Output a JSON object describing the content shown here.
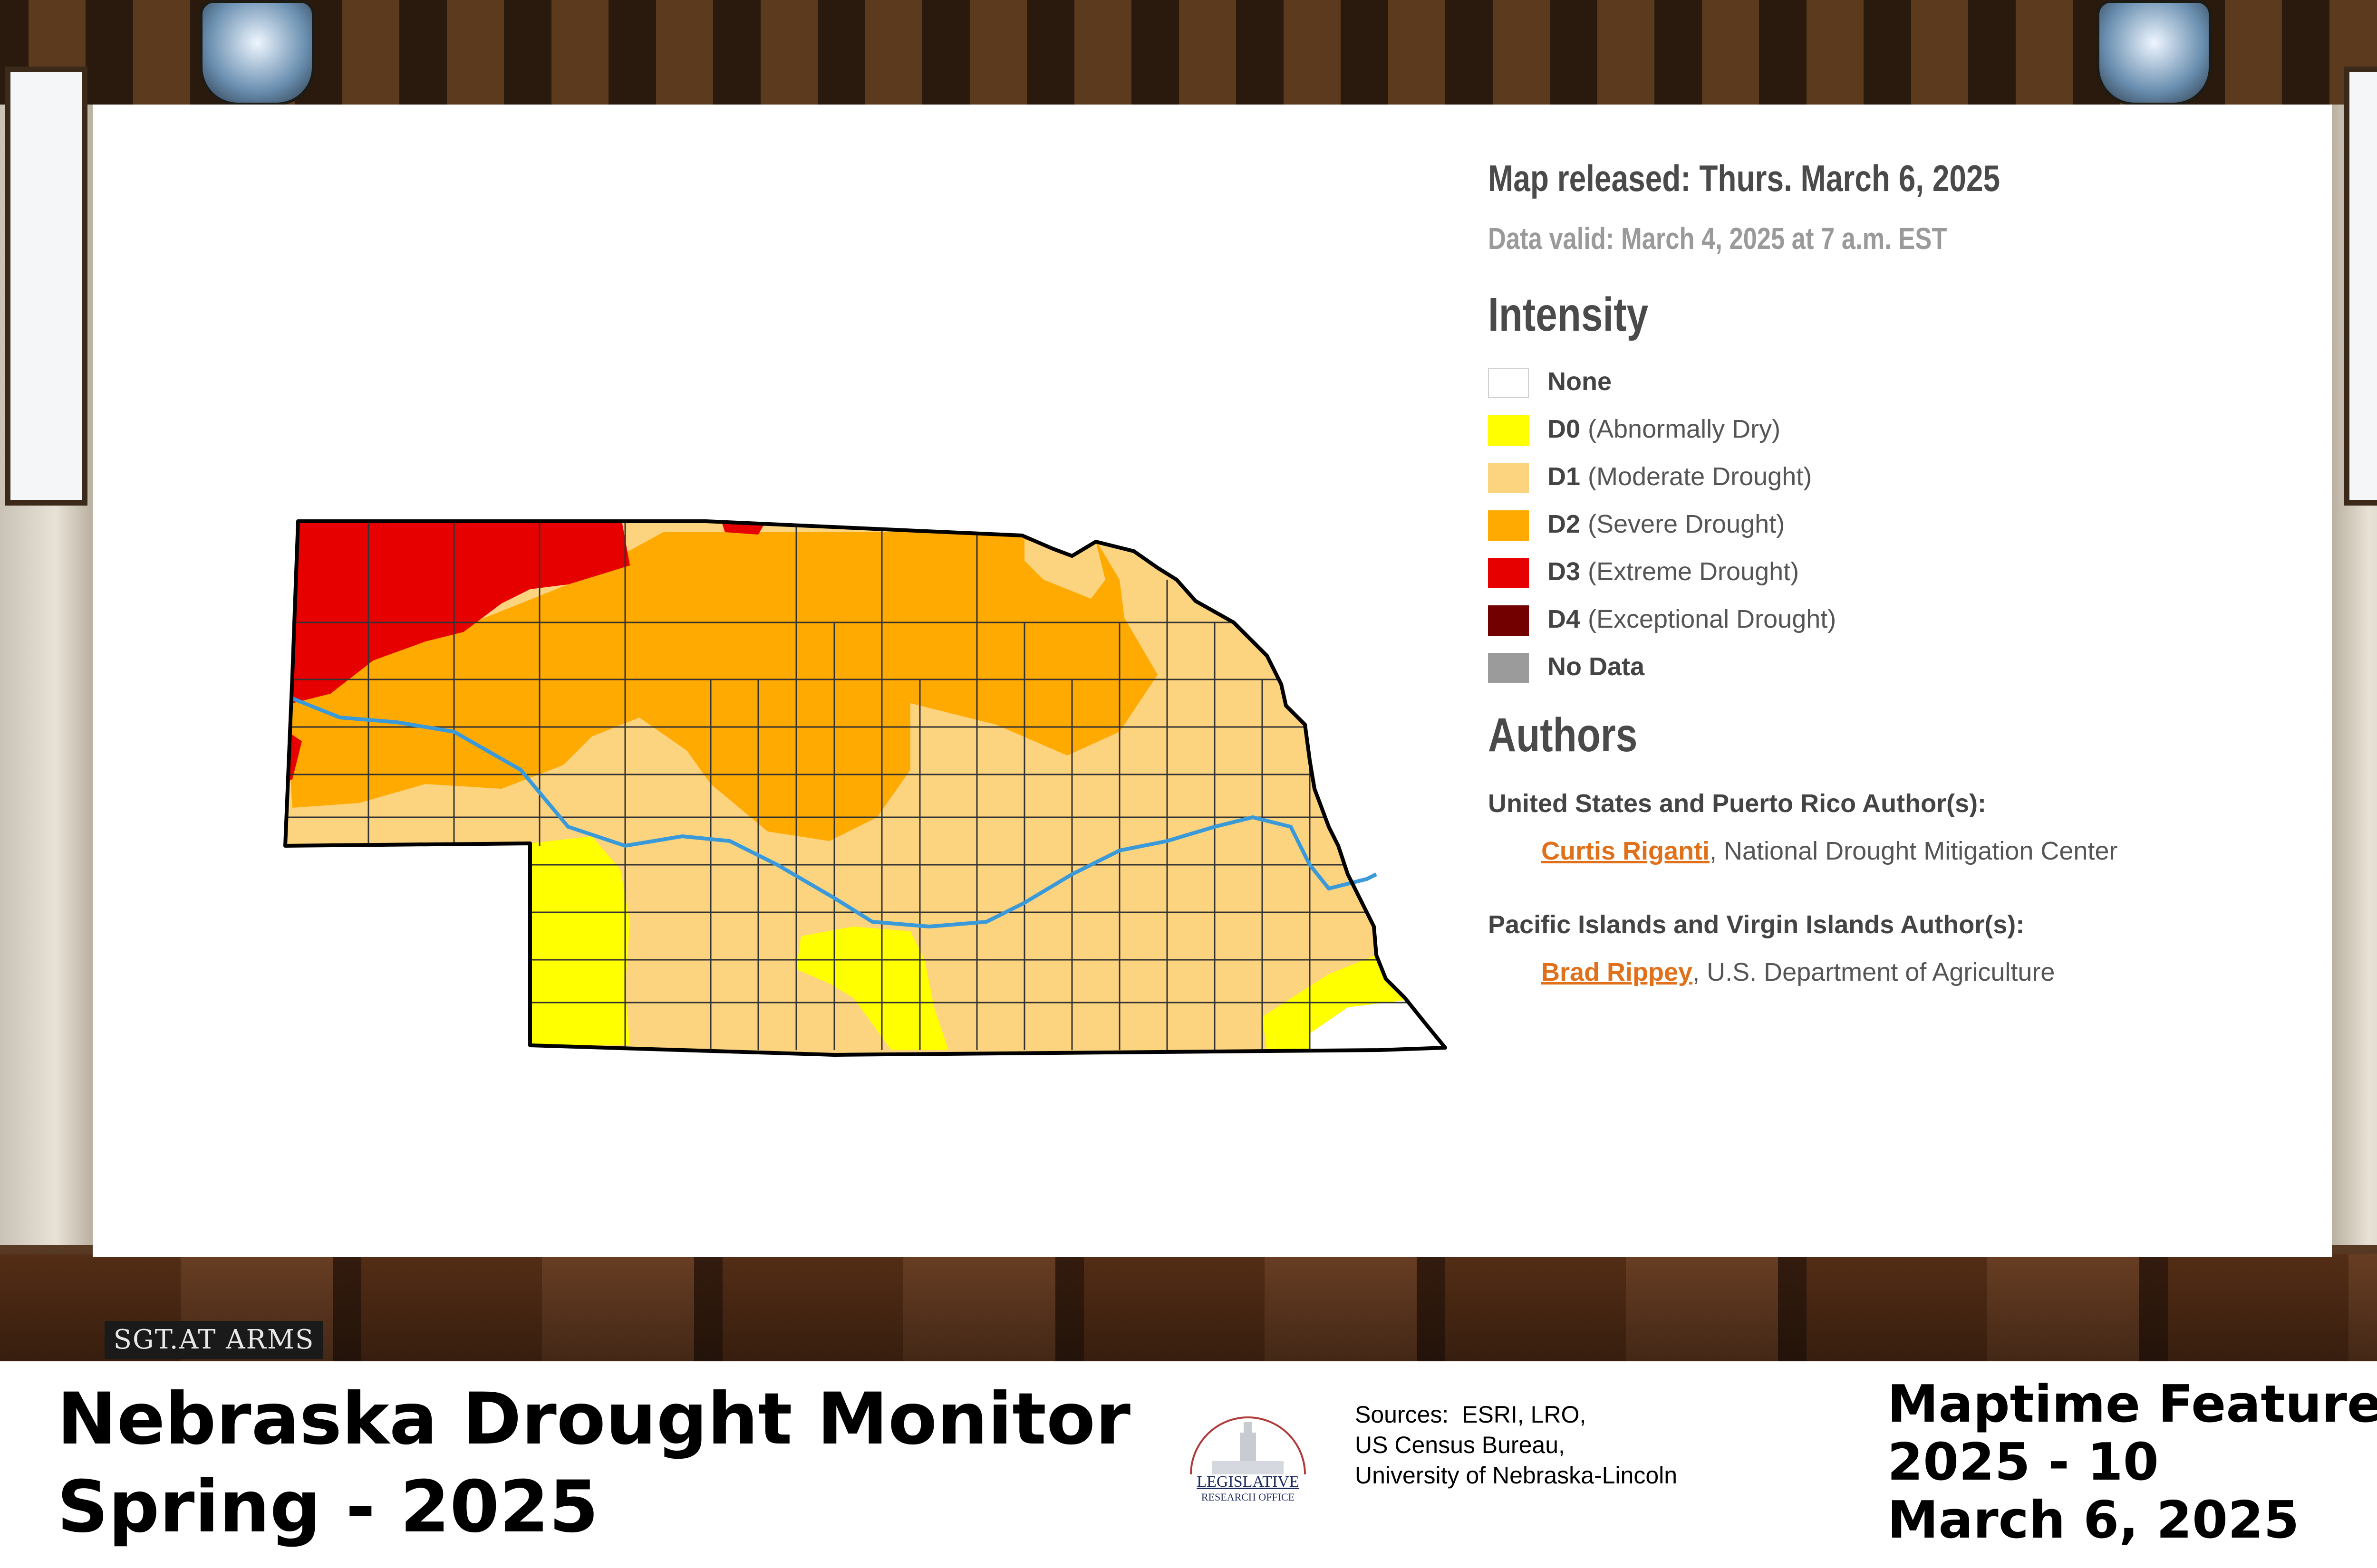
{
  "map": {
    "released": "Map released: Thurs. March 6, 2025",
    "valid": "Data valid: March 4, 2025 at 7 a.m. EST",
    "intensity_heading": "Intensity",
    "legend": [
      {
        "code": "None",
        "desc": "",
        "color": "#ffffff"
      },
      {
        "code": "D0",
        "desc": "(Abnormally Dry)",
        "color": "#ffff00"
      },
      {
        "code": "D1",
        "desc": "(Moderate Drought)",
        "color": "#fcd37f"
      },
      {
        "code": "D2",
        "desc": "(Severe Drought)",
        "color": "#ffaa00"
      },
      {
        "code": "D3",
        "desc": "(Extreme Drought)",
        "color": "#e60000"
      },
      {
        "code": "D4",
        "desc": "(Exceptional Drought)",
        "color": "#730000"
      },
      {
        "code": "No Data",
        "desc": "",
        "color": "#9b9b9b"
      }
    ],
    "authors_heading": "Authors",
    "authors": [
      {
        "group": "United States and Puerto Rico Author(s):",
        "name": "Curtis Riganti",
        "affiliation": ", National Drought Mitigation Center"
      },
      {
        "group": "Pacific Islands and Virgin Islands Author(s):",
        "name": "Brad Rippey",
        "affiliation": ", U.S. Department of Agriculture"
      }
    ],
    "river_color": "#3a9ad9"
  },
  "background": {
    "sign": "SGT.AT ARMS"
  },
  "footer": {
    "title_line1": "Nebraska Drought Monitor",
    "title_line2": "Spring - 2025",
    "logo_line1": "LEGISLATIVE",
    "logo_line2": "RESEARCH OFFICE",
    "sources_line1": "Sources:  ESRI, LRO,",
    "sources_line2": "US Census Bureau,",
    "sources_line3": "University of Nebraska-Lincoln",
    "feature_line1": "Maptime Feature",
    "feature_line2": "2025 - 10",
    "feature_line3": "March 6, 2025"
  }
}
